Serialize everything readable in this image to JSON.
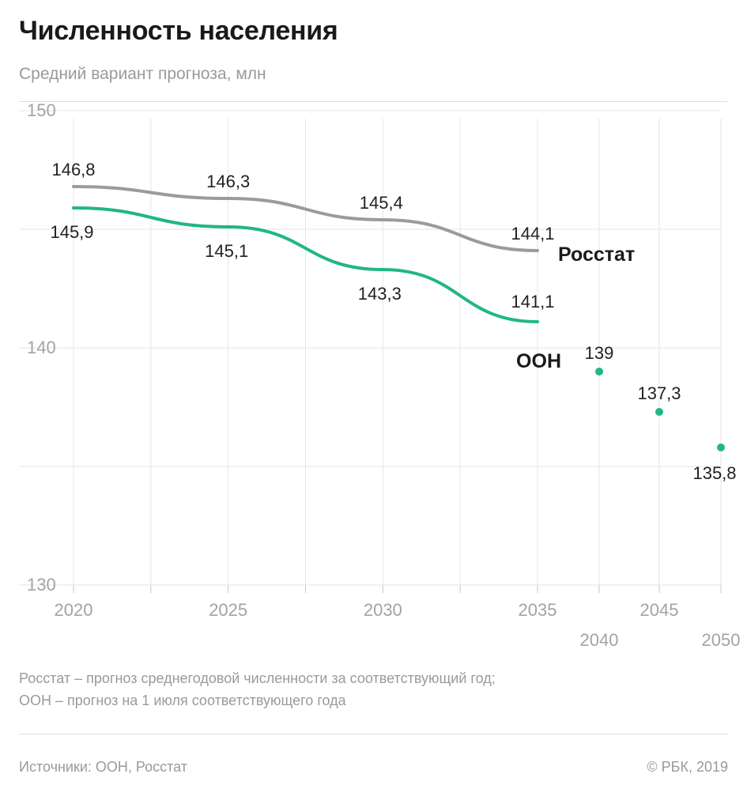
{
  "header": {
    "title": "Численность населения",
    "subtitle": "Средний вариант прогноза, млн"
  },
  "notes": {
    "line1": "Росстат – прогноз среднегодовой численности за соответствующий год;",
    "line2": "ООН – прогноз на 1 июля соответствующего года"
  },
  "footer": {
    "sources": "Источники: ООН, Росстат",
    "copyright": "© РБК, 2019"
  },
  "colors": {
    "rosstat": "#9b9b9b",
    "un": "#20b784",
    "grid": "#e6e6e6",
    "tick_text": "#a3a3a3",
    "label_text": "#222222"
  },
  "chart_data": {
    "type": "line",
    "title": "Численность населения",
    "subtitle": "Средний вариант прогноза, млн",
    "xlabel": "",
    "ylabel": "млн",
    "xlim": [
      2020,
      2050
    ],
    "ylim": [
      130,
      150
    ],
    "y_ticks": [
      150,
      140,
      130
    ],
    "y_tick_labels": [
      "150",
      "140",
      "130"
    ],
    "x_ticks": [
      2020,
      2025,
      2030,
      2035,
      2040,
      2045,
      2050
    ],
    "x_tick_labels": [
      "2020",
      "2025",
      "2030",
      "2035",
      "2040",
      "2045",
      "2050"
    ],
    "grid": true,
    "series": [
      {
        "name": "Росстат",
        "key": "rosstat",
        "style": "line",
        "x": [
          2020,
          2025,
          2030,
          2035
        ],
        "values": [
          146.8,
          146.3,
          145.4,
          144.1
        ],
        "labels": [
          "146,8",
          "146,3",
          "145,4",
          "144,1"
        ]
      },
      {
        "name": "ООН",
        "key": "un",
        "style": "line",
        "x": [
          2020,
          2025,
          2030,
          2035
        ],
        "values": [
          145.9,
          145.1,
          143.3,
          141.1
        ],
        "labels": [
          "145,9",
          "145,1",
          "143,3",
          "141,1"
        ]
      },
      {
        "name": "ООН",
        "key": "un_points",
        "style": "points",
        "x": [
          2040,
          2045,
          2050
        ],
        "values": [
          139,
          137.3,
          135.8
        ],
        "labels": [
          "139",
          "137,3",
          "135,8"
        ]
      }
    ]
  }
}
